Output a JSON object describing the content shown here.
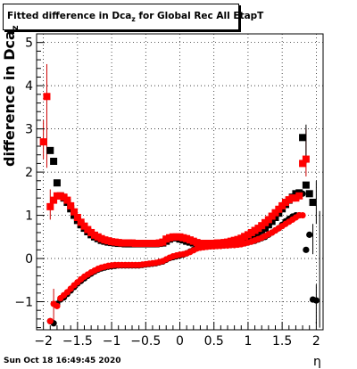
{
  "title": {
    "prefix": "Fitted difference in Dca",
    "sub": "z",
    "suffix": " for Global Rec All EtapT"
  },
  "ylabel": {
    "text": "difference in Dca",
    "sub": "z"
  },
  "xlabel": "η",
  "footer": "Sun Oct 18 16:49:45 2020",
  "chart_data": {
    "type": "scatter",
    "xlim": [
      -2.1,
      2.1
    ],
    "ylim": [
      -1.65,
      5.2
    ],
    "grid": true,
    "x_ticks": [
      -2,
      -1.5,
      -1,
      -0.5,
      0,
      0.5,
      1,
      1.5,
      2
    ],
    "x_tick_labels": [
      "−2",
      "−1.5",
      "−1",
      "−0.5",
      "0",
      "0.5",
      "1",
      "1.5",
      "2"
    ],
    "y_ticks": [
      -1,
      0,
      1,
      2,
      3,
      4,
      5
    ],
    "y_tick_labels": [
      "−1",
      "0",
      "1",
      "2",
      "3",
      "4",
      "5"
    ],
    "series": [
      {
        "marker": "square",
        "color": "#000000",
        "zorder": 1,
        "x": [
          -1.9,
          -1.85,
          -1.8,
          -1.75,
          -1.7,
          -1.65,
          -1.6,
          -1.55,
          -1.5,
          -1.45,
          -1.4,
          -1.35,
          -1.3,
          -1.25,
          -1.2,
          -1.15,
          -1.1,
          -1.05,
          -1.0,
          -0.95,
          -0.9,
          -0.85,
          -0.8,
          -0.75,
          -0.7,
          -0.65,
          -0.6,
          -0.55,
          -0.5,
          -0.45,
          -0.4,
          -0.35,
          -0.3,
          -0.25,
          -0.2,
          -0.15,
          -0.1,
          -0.05,
          0.0,
          0.05,
          0.1,
          0.15,
          0.2,
          0.25,
          0.3,
          0.35,
          0.4,
          0.45,
          0.5,
          0.55,
          0.6,
          0.65,
          0.7,
          0.75,
          0.8,
          0.85,
          0.9,
          0.95,
          1.0,
          1.05,
          1.1,
          1.15,
          1.2,
          1.25,
          1.3,
          1.35,
          1.4,
          1.45,
          1.5,
          1.55,
          1.6,
          1.65,
          1.7,
          1.75,
          1.8,
          1.85,
          1.9,
          1.95,
          2.0,
          2.05
        ],
        "y": [
          2.5,
          2.25,
          1.75,
          1.45,
          1.4,
          1.3,
          1.15,
          1.0,
          0.88,
          0.78,
          0.7,
          0.62,
          0.55,
          0.5,
          0.46,
          0.42,
          0.4,
          0.38,
          0.37,
          0.36,
          0.35,
          0.35,
          0.34,
          0.34,
          0.34,
          0.34,
          0.34,
          0.34,
          0.34,
          0.34,
          0.34,
          0.34,
          0.35,
          0.36,
          0.4,
          0.45,
          0.48,
          0.48,
          0.45,
          0.43,
          0.4,
          0.38,
          0.36,
          0.35,
          0.34,
          0.34,
          0.34,
          0.34,
          0.34,
          0.34,
          0.35,
          0.35,
          0.36,
          0.37,
          0.38,
          0.4,
          0.42,
          0.45,
          0.48,
          0.52,
          0.56,
          0.6,
          0.65,
          0.7,
          0.78,
          0.86,
          0.95,
          1.05,
          1.15,
          1.25,
          1.35,
          1.42,
          1.5,
          1.52,
          2.8,
          1.7,
          1.5,
          1.3,
          null,
          null
        ]
      },
      {
        "marker": "circle",
        "color": "#000000",
        "zorder": 1,
        "x": [
          -1.9,
          -1.85,
          -1.8,
          -1.75,
          -1.7,
          -1.65,
          -1.6,
          -1.55,
          -1.5,
          -1.45,
          -1.4,
          -1.35,
          -1.3,
          -1.25,
          -1.2,
          -1.15,
          -1.1,
          -1.05,
          -1.0,
          -0.95,
          -0.9,
          -0.85,
          -0.8,
          -0.75,
          -0.7,
          -0.65,
          -0.6,
          -0.55,
          -0.5,
          -0.45,
          -0.4,
          -0.35,
          -0.3,
          -0.25,
          -0.2,
          -0.15,
          -0.1,
          -0.05,
          0.0,
          0.05,
          0.1,
          0.15,
          0.2,
          0.25,
          0.3,
          0.35,
          0.4,
          0.45,
          0.5,
          0.55,
          0.6,
          0.65,
          0.7,
          0.75,
          0.8,
          0.85,
          0.9,
          0.95,
          1.0,
          1.05,
          1.1,
          1.15,
          1.2,
          1.25,
          1.3,
          1.35,
          1.4,
          1.45,
          1.5,
          1.55,
          1.6,
          1.65,
          1.7,
          1.75,
          1.8,
          1.85,
          1.9,
          1.95,
          2.0,
          2.05
        ],
        "y": [
          -1.45,
          -1.5,
          -1.05,
          -0.95,
          -0.9,
          -0.82,
          -0.74,
          -0.66,
          -0.58,
          -0.52,
          -0.46,
          -0.4,
          -0.35,
          -0.3,
          -0.26,
          -0.23,
          -0.21,
          -0.19,
          -0.18,
          -0.17,
          -0.16,
          -0.16,
          -0.16,
          -0.16,
          -0.16,
          -0.16,
          -0.16,
          -0.15,
          -0.14,
          -0.13,
          -0.12,
          -0.11,
          -0.09,
          -0.07,
          -0.03,
          0.01,
          0.03,
          0.05,
          0.07,
          0.09,
          0.12,
          0.16,
          0.2,
          0.24,
          0.26,
          0.27,
          0.28,
          0.28,
          0.29,
          0.29,
          0.3,
          0.3,
          0.31,
          0.31,
          0.32,
          0.33,
          0.34,
          0.35,
          0.37,
          0.39,
          0.41,
          0.44,
          0.47,
          0.5,
          0.55,
          0.6,
          0.65,
          0.7,
          0.78,
          0.86,
          0.92,
          0.97,
          1.0,
          1.0,
          1.5,
          0.2,
          0.55,
          -0.95,
          -0.97,
          null
        ]
      },
      {
        "marker": "circle",
        "color": "#ff0000",
        "zorder": 2,
        "x": [
          -1.9,
          -1.85,
          -1.8,
          -1.75,
          -1.7,
          -1.65,
          -1.6,
          -1.55,
          -1.5,
          -1.45,
          -1.4,
          -1.35,
          -1.3,
          -1.25,
          -1.2,
          -1.15,
          -1.1,
          -1.05,
          -1.0,
          -0.95,
          -0.9,
          -0.85,
          -0.8,
          -0.75,
          -0.7,
          -0.65,
          -0.6,
          -0.55,
          -0.5,
          -0.45,
          -0.4,
          -0.35,
          -0.3,
          -0.25,
          -0.2,
          -0.15,
          -0.1,
          -0.05,
          0.0,
          0.05,
          0.1,
          0.15,
          0.2,
          0.25,
          0.3,
          0.35,
          0.4,
          0.45,
          0.5,
          0.55,
          0.6,
          0.65,
          0.7,
          0.75,
          0.8,
          0.85,
          0.9,
          0.95,
          1.0,
          1.05,
          1.1,
          1.15,
          1.2,
          1.25,
          1.3,
          1.35,
          1.4,
          1.45,
          1.5,
          1.55,
          1.6,
          1.65,
          1.7,
          1.75,
          1.8
        ],
        "y": [
          -1.45,
          -1.05,
          -1.1,
          -0.92,
          -0.85,
          -0.78,
          -0.7,
          -0.62,
          -0.55,
          -0.48,
          -0.42,
          -0.37,
          -0.32,
          -0.28,
          -0.24,
          -0.21,
          -0.19,
          -0.17,
          -0.16,
          -0.15,
          -0.15,
          -0.15,
          -0.15,
          -0.15,
          -0.15,
          -0.15,
          -0.15,
          -0.14,
          -0.13,
          -0.12,
          -0.11,
          -0.1,
          -0.08,
          -0.06,
          -0.02,
          0.02,
          0.05,
          0.07,
          0.09,
          0.1,
          0.12,
          0.15,
          0.19,
          0.23,
          0.25,
          0.26,
          0.27,
          0.28,
          0.28,
          0.29,
          0.29,
          0.3,
          0.3,
          0.31,
          0.31,
          0.32,
          0.33,
          0.35,
          0.37,
          0.39,
          0.42,
          0.45,
          0.48,
          0.52,
          0.56,
          0.6,
          0.65,
          0.7,
          0.75,
          0.8,
          0.85,
          0.9,
          0.95,
          1.0,
          1.0
        ]
      },
      {
        "marker": "square",
        "color": "#ff0000",
        "zorder": 3,
        "x": [
          -2.0,
          -1.95,
          -1.9,
          -1.85,
          -1.8,
          -1.75,
          -1.7,
          -1.65,
          -1.6,
          -1.55,
          -1.5,
          -1.45,
          -1.4,
          -1.35,
          -1.3,
          -1.25,
          -1.2,
          -1.15,
          -1.1,
          -1.05,
          -1.0,
          -0.95,
          -0.9,
          -0.85,
          -0.8,
          -0.75,
          -0.7,
          -0.65,
          -0.6,
          -0.55,
          -0.5,
          -0.45,
          -0.4,
          -0.35,
          -0.3,
          -0.25,
          -0.2,
          -0.15,
          -0.1,
          -0.05,
          0.0,
          0.05,
          0.1,
          0.15,
          0.2,
          0.25,
          0.3,
          0.35,
          0.4,
          0.45,
          0.5,
          0.55,
          0.6,
          0.65,
          0.7,
          0.75,
          0.8,
          0.85,
          0.9,
          0.95,
          1.0,
          1.05,
          1.1,
          1.15,
          1.2,
          1.25,
          1.3,
          1.35,
          1.4,
          1.45,
          1.5,
          1.55,
          1.6,
          1.65,
          1.7,
          1.75,
          1.8,
          1.85
        ],
        "y": [
          2.7,
          3.75,
          1.2,
          1.35,
          1.45,
          1.45,
          1.42,
          1.35,
          1.22,
          1.08,
          0.95,
          0.84,
          0.75,
          0.67,
          0.6,
          0.54,
          0.5,
          0.46,
          0.43,
          0.41,
          0.39,
          0.38,
          0.37,
          0.36,
          0.36,
          0.36,
          0.36,
          0.35,
          0.35,
          0.35,
          0.35,
          0.35,
          0.35,
          0.35,
          0.36,
          0.38,
          0.45,
          0.48,
          0.5,
          0.5,
          0.5,
          0.48,
          0.46,
          0.43,
          0.4,
          0.37,
          0.35,
          0.35,
          0.35,
          0.35,
          0.35,
          0.36,
          0.36,
          0.37,
          0.38,
          0.4,
          0.42,
          0.44,
          0.47,
          0.51,
          0.55,
          0.6,
          0.65,
          0.7,
          0.76,
          0.83,
          0.9,
          0.98,
          1.06,
          1.14,
          1.22,
          1.3,
          1.36,
          1.4,
          1.4,
          1.45,
          2.2,
          2.3
        ]
      }
    ],
    "error_bars": [
      {
        "x": -1.95,
        "y_low": 2.1,
        "y_high": 4.5,
        "color": "#cc0000"
      },
      {
        "x": -2.0,
        "y_low": 2.3,
        "y_high": 3.2,
        "color": "#cc0000"
      },
      {
        "x": -1.9,
        "y_low": 0.9,
        "y_high": 1.6,
        "color": "#cc0000"
      },
      {
        "x": -1.85,
        "y_low": -1.5,
        "y_high": -0.7,
        "color": "#cc0000"
      },
      {
        "x": 1.85,
        "y_low": 1.9,
        "y_high": 3.0,
        "color": "#cc0000"
      },
      {
        "x": 1.85,
        "y_low": 2.2,
        "y_high": 3.1,
        "color": "#000000"
      },
      {
        "x": 2.0,
        "y_low": 0.8,
        "y_high": 1.8,
        "color": "#000000"
      },
      {
        "x": 2.05,
        "y_low": -1.6,
        "y_high": 1.1,
        "color": "#000000"
      },
      {
        "x": 1.95,
        "y_low": 0.1,
        "y_high": 0.8,
        "color": "#000000"
      },
      {
        "x": 2.0,
        "y_low": -1.5,
        "y_high": -0.6,
        "color": "#000000"
      }
    ]
  }
}
